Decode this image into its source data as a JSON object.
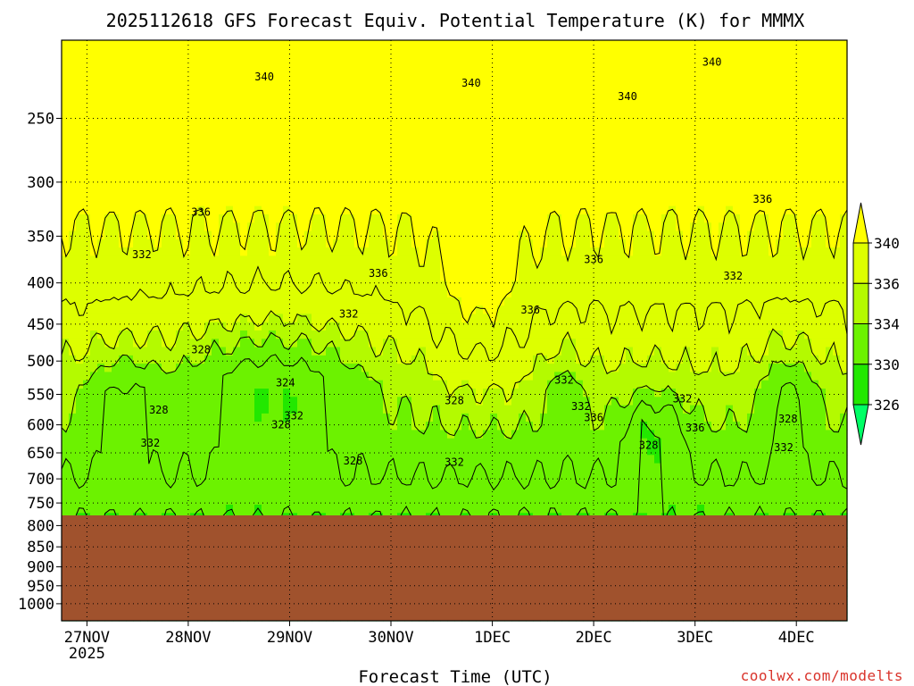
{
  "chart_data": {
    "type": "heatmap",
    "title": "2025112618 GFS Forecast Equiv. Potential Temperature (K) for MMMX",
    "xlabel": "Forecast Time (UTC)",
    "ylabel": "",
    "credit": "coolwx.com/modelts",
    "y_axis": {
      "scale": "log-pressure",
      "ylim": [
        1050,
        200
      ],
      "ticks": [
        250,
        300,
        350,
        400,
        450,
        500,
        550,
        600,
        650,
        700,
        750,
        800,
        850,
        900,
        950,
        1000
      ],
      "tick_labels": [
        "250",
        "300",
        "350",
        "400",
        "450",
        "500",
        "550",
        "600",
        "650",
        "700",
        "750",
        "800",
        "850",
        "900",
        "950",
        "1000"
      ]
    },
    "x_axis": {
      "start_hour": 18,
      "end_hour": 204,
      "ticks": [
        {
          "label": "27NOV",
          "hour": 24,
          "sub": "2025"
        },
        {
          "label": "28NOV",
          "hour": 48,
          "sub": ""
        },
        {
          "label": "29NOV",
          "hour": 72,
          "sub": ""
        },
        {
          "label": "30NOV",
          "hour": 96,
          "sub": ""
        },
        {
          "label": "1DEC",
          "hour": 120,
          "sub": ""
        },
        {
          "label": "2DEC",
          "hour": 144,
          "sub": ""
        },
        {
          "label": "3DEC",
          "hour": 168,
          "sub": ""
        },
        {
          "label": "4DEC",
          "hour": 192,
          "sub": ""
        }
      ]
    },
    "grid": true,
    "surface_pressure": 777,
    "surface_color": "#a0522d",
    "colorbar": {
      "levels": [
        326,
        330,
        334,
        336,
        340
      ],
      "labels": [
        "326",
        "330",
        "334",
        "336",
        "340"
      ],
      "colors": [
        "#00ff66",
        "#22e800",
        "#6cf200",
        "#b4fa00",
        "#ddff00",
        "#ffff00"
      ]
    },
    "contour_interval_K": 2,
    "contour_labels": [
      {
        "text": "340",
        "hour": 66,
        "p": 222
      },
      {
        "text": "340",
        "hour": 115,
        "p": 226
      },
      {
        "text": "340",
        "hour": 152,
        "p": 235
      },
      {
        "text": "340",
        "hour": 172,
        "p": 213
      },
      {
        "text": "336",
        "hour": 51,
        "p": 327
      },
      {
        "text": "336",
        "hour": 93,
        "p": 389
      },
      {
        "text": "336",
        "hour": 144,
        "p": 374
      },
      {
        "text": "336",
        "hour": 129,
        "p": 432
      },
      {
        "text": "336",
        "hour": 184,
        "p": 315
      },
      {
        "text": "336",
        "hour": 144,
        "p": 588
      },
      {
        "text": "336",
        "hour": 168,
        "p": 605
      },
      {
        "text": "332",
        "hour": 37,
        "p": 369
      },
      {
        "text": "332",
        "hour": 86,
        "p": 437
      },
      {
        "text": "332",
        "hour": 111,
        "p": 668
      },
      {
        "text": "332",
        "hour": 137,
        "p": 528
      },
      {
        "text": "332",
        "hour": 141,
        "p": 569
      },
      {
        "text": "332",
        "hour": 165,
        "p": 557
      },
      {
        "text": "332",
        "hour": 177,
        "p": 392
      },
      {
        "text": "332",
        "hour": 189,
        "p": 640
      },
      {
        "text": "332",
        "hour": 73,
        "p": 585
      },
      {
        "text": "332",
        "hour": 39,
        "p": 632
      },
      {
        "text": "328",
        "hour": 51,
        "p": 484
      },
      {
        "text": "328",
        "hour": 41,
        "p": 575
      },
      {
        "text": "328",
        "hour": 70,
        "p": 600
      },
      {
        "text": "328",
        "hour": 87,
        "p": 665
      },
      {
        "text": "328",
        "hour": 111,
        "p": 560
      },
      {
        "text": "328",
        "hour": 157,
        "p": 636
      },
      {
        "text": "328",
        "hour": 190,
        "p": 590
      },
      {
        "text": "324",
        "hour": 71,
        "p": 532
      }
    ]
  }
}
